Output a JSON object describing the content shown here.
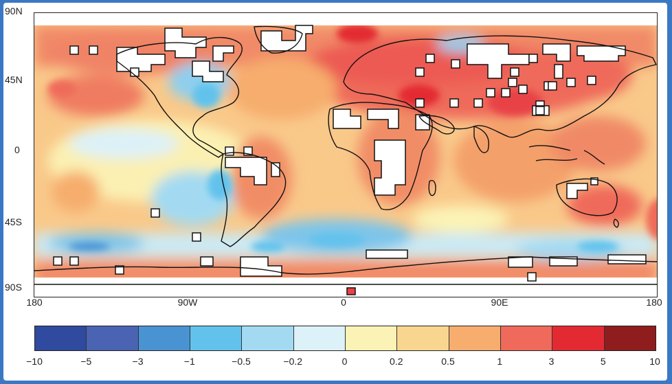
{
  "map": {
    "lat_labels": [
      "90N",
      "45N",
      "0",
      "45S",
      "90S"
    ],
    "lon_labels": [
      "180",
      "90W",
      "0",
      "90E",
      "180"
    ],
    "no_data_color": "#ffffff",
    "coastline_color": "#111111"
  },
  "colorbar": {
    "labels": [
      "−10",
      "−5",
      "−3",
      "−1",
      "−0.5",
      "−0.2",
      "0",
      "0.2",
      "0.5",
      "1",
      "3",
      "5",
      "10"
    ],
    "colors": [
      "#2f4a9e",
      "#4a63b2",
      "#4a93d3",
      "#62c2ec",
      "#a3daf2",
      "#dcf1f8",
      "#fbf3b5",
      "#f9d68f",
      "#f6ad6d",
      "#ef6a5a",
      "#e32a33",
      "#8f1d1e"
    ]
  }
}
